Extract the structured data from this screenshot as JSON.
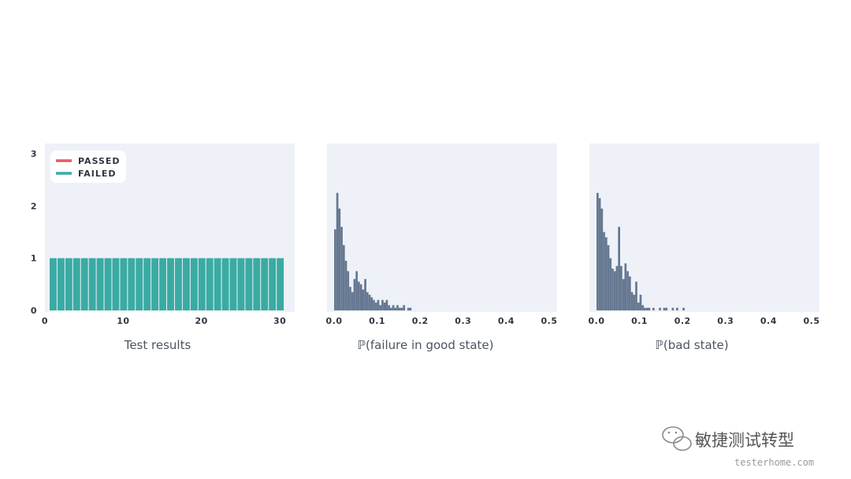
{
  "colors": {
    "panel_bg": "#eef2f8",
    "passed": "#e05a63",
    "failed": "#3aaba3",
    "hist": "#667891",
    "tick_text": "#2f3640",
    "axis_title": "#4a5562"
  },
  "chart_data": [
    {
      "type": "bar",
      "xlabel": "Test results",
      "ylabel": "",
      "xlim": [
        0,
        31
      ],
      "ylim": [
        0,
        3
      ],
      "xticks": [
        "0",
        "10",
        "20",
        "30"
      ],
      "yticks": [
        "0",
        "1",
        "2",
        "3"
      ],
      "legend": {
        "placement": "top-left",
        "entries": [
          {
            "label": "PASSED",
            "color": "#e05a63"
          },
          {
            "label": "FAILED",
            "color": "#3aaba3"
          }
        ]
      },
      "series": [
        {
          "name": "FAILED",
          "x": [
            1,
            2,
            3,
            4,
            5,
            6,
            7,
            8,
            9,
            10,
            11,
            12,
            13,
            14,
            15,
            16,
            17,
            18,
            19,
            20,
            21,
            22,
            23,
            24,
            25,
            26,
            27,
            28,
            29,
            30
          ],
          "values": [
            1,
            1,
            1,
            1,
            1,
            1,
            1,
            1,
            1,
            1,
            1,
            1,
            1,
            1,
            1,
            1,
            1,
            1,
            1,
            1,
            1,
            1,
            1,
            1,
            1,
            1,
            1,
            1,
            1,
            1
          ]
        },
        {
          "name": "PASSED",
          "x": [],
          "values": []
        }
      ]
    },
    {
      "type": "bar",
      "xlabel": "ℙ(failure in good state)",
      "xlim": [
        0,
        0.5
      ],
      "ylim": [
        0,
        3
      ],
      "xticks": [
        "0.0",
        "0.1",
        "0.2",
        "0.3",
        "0.4",
        "0.5"
      ],
      "bin_width": 0.005,
      "bin_start": 0.0,
      "values": [
        1.55,
        2.25,
        1.95,
        1.6,
        1.25,
        0.95,
        0.75,
        0.45,
        0.35,
        0.6,
        0.75,
        0.55,
        0.5,
        0.4,
        0.6,
        0.35,
        0.3,
        0.25,
        0.2,
        0.15,
        0.2,
        0.1,
        0.2,
        0.15,
        0.2,
        0.1,
        0.05,
        0.1,
        0.05,
        0.1,
        0.05,
        0.05,
        0.1,
        0.0,
        0.05,
        0.05
      ]
    },
    {
      "type": "bar",
      "xlabel": "ℙ(bad state)",
      "xlim": [
        0,
        0.5
      ],
      "ylim": [
        0,
        3
      ],
      "xticks": [
        "0.0",
        "0.1",
        "0.2",
        "0.3",
        "0.4",
        "0.5"
      ],
      "bin_width": 0.005,
      "bin_start": 0.0,
      "values": [
        2.25,
        2.15,
        1.95,
        1.5,
        1.4,
        1.25,
        1.0,
        0.8,
        0.75,
        0.85,
        1.6,
        0.85,
        0.6,
        0.9,
        0.75,
        0.65,
        0.35,
        0.3,
        0.55,
        0.15,
        0.3,
        0.1,
        0.05,
        0.05,
        0.05,
        0.0,
        0.05,
        0.0,
        0.0,
        0.05,
        0.0,
        0.05,
        0.05,
        0.0,
        0.0,
        0.05,
        0.0,
        0.05,
        0.0,
        0.0,
        0.05
      ]
    }
  ],
  "watermark": {
    "title": "敏捷测试转型",
    "subtitle": "testerhome.com",
    "icon": "wechat-icon"
  }
}
